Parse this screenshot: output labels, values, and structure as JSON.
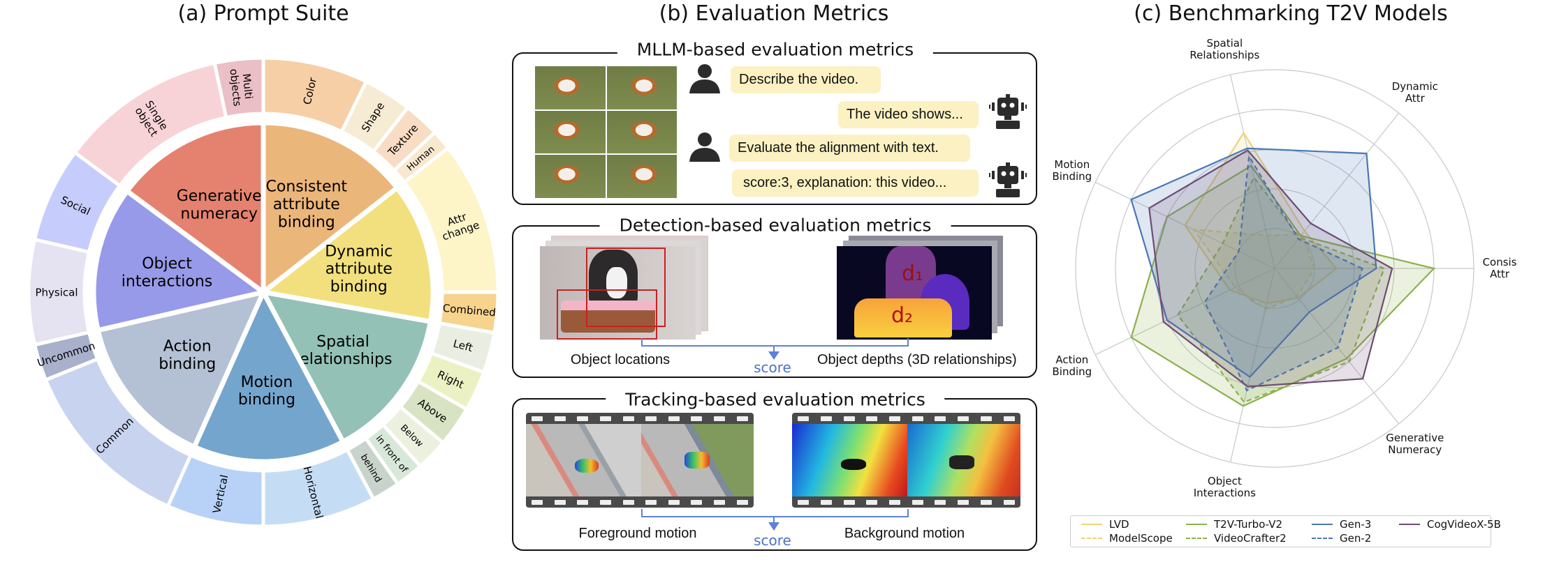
{
  "panel_a": {
    "title": "(a) Prompt Suite",
    "categories": [
      {
        "label": [
          "Consistent",
          "attribute",
          "binding"
        ],
        "color": "#EBB679",
        "subs": [
          {
            "label": [
              "Color"
            ],
            "color": "#F6CFA6"
          },
          {
            "label": [
              "Shape"
            ],
            "color": "#F6EBD3"
          },
          {
            "label": [
              "Texture"
            ],
            "color": "#F8DCC3"
          },
          {
            "label": [
              "Human"
            ],
            "color": "#F8E8CD"
          }
        ]
      },
      {
        "label": [
          "Dynamic",
          "attribute",
          "binding"
        ],
        "color": "#F2E07E",
        "subs": [
          {
            "label": [
              "Attr",
              "change"
            ],
            "color": "#FDF4C8"
          },
          {
            "label": [
              "Combined"
            ],
            "color": "#F6D48D"
          }
        ]
      },
      {
        "label": [
          "Spatial",
          "relationships"
        ],
        "color": "#93C1B5",
        "subs": [
          {
            "label": [
              "Left"
            ],
            "color": "#EAEEE2"
          },
          {
            "label": [
              "Right"
            ],
            "color": "#EBF1C3"
          },
          {
            "label": [
              "Above"
            ],
            "color": "#D8E3C4"
          },
          {
            "label": [
              "Below"
            ],
            "color": "#EBF1DE"
          },
          {
            "label": [
              "in front of"
            ],
            "color": "#D7E7D9"
          },
          {
            "label": [
              "behind"
            ],
            "color": "#C8D4CB"
          }
        ]
      },
      {
        "label": [
          "Motion",
          "binding"
        ],
        "color": "#74A5CD",
        "subs": [
          {
            "label": [
              "Horizontal"
            ],
            "color": "#C5DDF4"
          },
          {
            "label": [
              "Vertical"
            ],
            "color": "#B7D2F6"
          }
        ]
      },
      {
        "label": [
          "Action",
          "binding"
        ],
        "color": "#B4C0D4",
        "subs": [
          {
            "label": [
              "Common"
            ],
            "color": "#C8D3F0"
          },
          {
            "label": [
              "Uncommon"
            ],
            "color": "#A8B0CC"
          }
        ]
      },
      {
        "label": [
          "Object",
          "interactions"
        ],
        "color": "#979AE8",
        "subs": [
          {
            "label": [
              "Physical"
            ],
            "color": "#E5E2F2"
          },
          {
            "label": [
              "Social"
            ],
            "color": "#C6CCFB"
          }
        ]
      },
      {
        "label": [
          "Generative",
          "numeracy"
        ],
        "color": "#E5826F",
        "subs": [
          {
            "label": [
              "Single",
              "object"
            ],
            "color": "#F7D3D8"
          },
          {
            "label": [
              "Multi",
              "objects"
            ],
            "color": "#EBBFC6"
          }
        ]
      }
    ]
  },
  "panel_b": {
    "title": "(b) Evaluation Metrics",
    "mllm": {
      "title": "MLLM-based evaluation metrics",
      "messages": [
        "Describe the video.",
        "The video shows...",
        "Evaluate the alignment with text.",
        "score:3, explanation: this video..."
      ]
    },
    "detection": {
      "title": "Detection-based evaluation metrics",
      "left_caption": "Object locations",
      "right_caption": "Object depths (3D relationships)",
      "score": "score",
      "d1": "d₁",
      "d2": "d₂"
    },
    "tracking": {
      "title": "Tracking-based evaluation metrics",
      "left_caption": "Foreground motion",
      "right_caption": "Background motion",
      "score": "score"
    }
  },
  "panel_c": {
    "title": "(c) Benchmarking T2V Models"
  },
  "chart_data": {
    "type": "radar",
    "axes": [
      "Consis\nAttr",
      "Dynamic\nAttr",
      "Spatial\nRelationships",
      "Motion\nBinding",
      "Action\nBinding",
      "Object\nInteractions",
      "Generative\nNumeracy"
    ],
    "rlim": [
      0,
      1
    ],
    "rings": 5,
    "grid": true,
    "legend_placement": "bottom",
    "series": [
      {
        "name": "LVD",
        "color": "#EFD27A",
        "dashed": false,
        "values": [
          0.31,
          0.24,
          0.7,
          0.5,
          0.25,
          0.18,
          0.19
        ]
      },
      {
        "name": "ModelScope",
        "color": "#EFD27A",
        "dashed": true,
        "values": [
          0.2,
          0.22,
          0.17,
          0.45,
          0.22,
          0.21,
          0.18
        ]
      },
      {
        "name": "T2V-Turbo-V2",
        "color": "#8DB04E",
        "dashed": false,
        "values": [
          0.8,
          0.21,
          0.53,
          0.6,
          0.8,
          0.71,
          0.58
        ]
      },
      {
        "name": "VideoCrafter2",
        "color": "#8DB04E",
        "dashed": true,
        "values": [
          0.55,
          0.2,
          0.47,
          0.29,
          0.54,
          0.69,
          0.6
        ]
      },
      {
        "name": "Gen-3",
        "color": "#4A78B5",
        "dashed": false,
        "values": [
          0.51,
          0.74,
          0.62,
          0.8,
          0.6,
          0.56,
          0.28
        ]
      },
      {
        "name": "Gen-2",
        "color": "#4A78B5",
        "dashed": true,
        "values": [
          0.44,
          0.19,
          0.58,
          0.2,
          0.39,
          0.63,
          0.51
        ]
      },
      {
        "name": "CogVideoX-5B",
        "color": "#6E4C74",
        "dashed": false,
        "values": [
          0.59,
          0.29,
          0.61,
          0.7,
          0.62,
          0.61,
          0.71
        ]
      }
    ]
  }
}
